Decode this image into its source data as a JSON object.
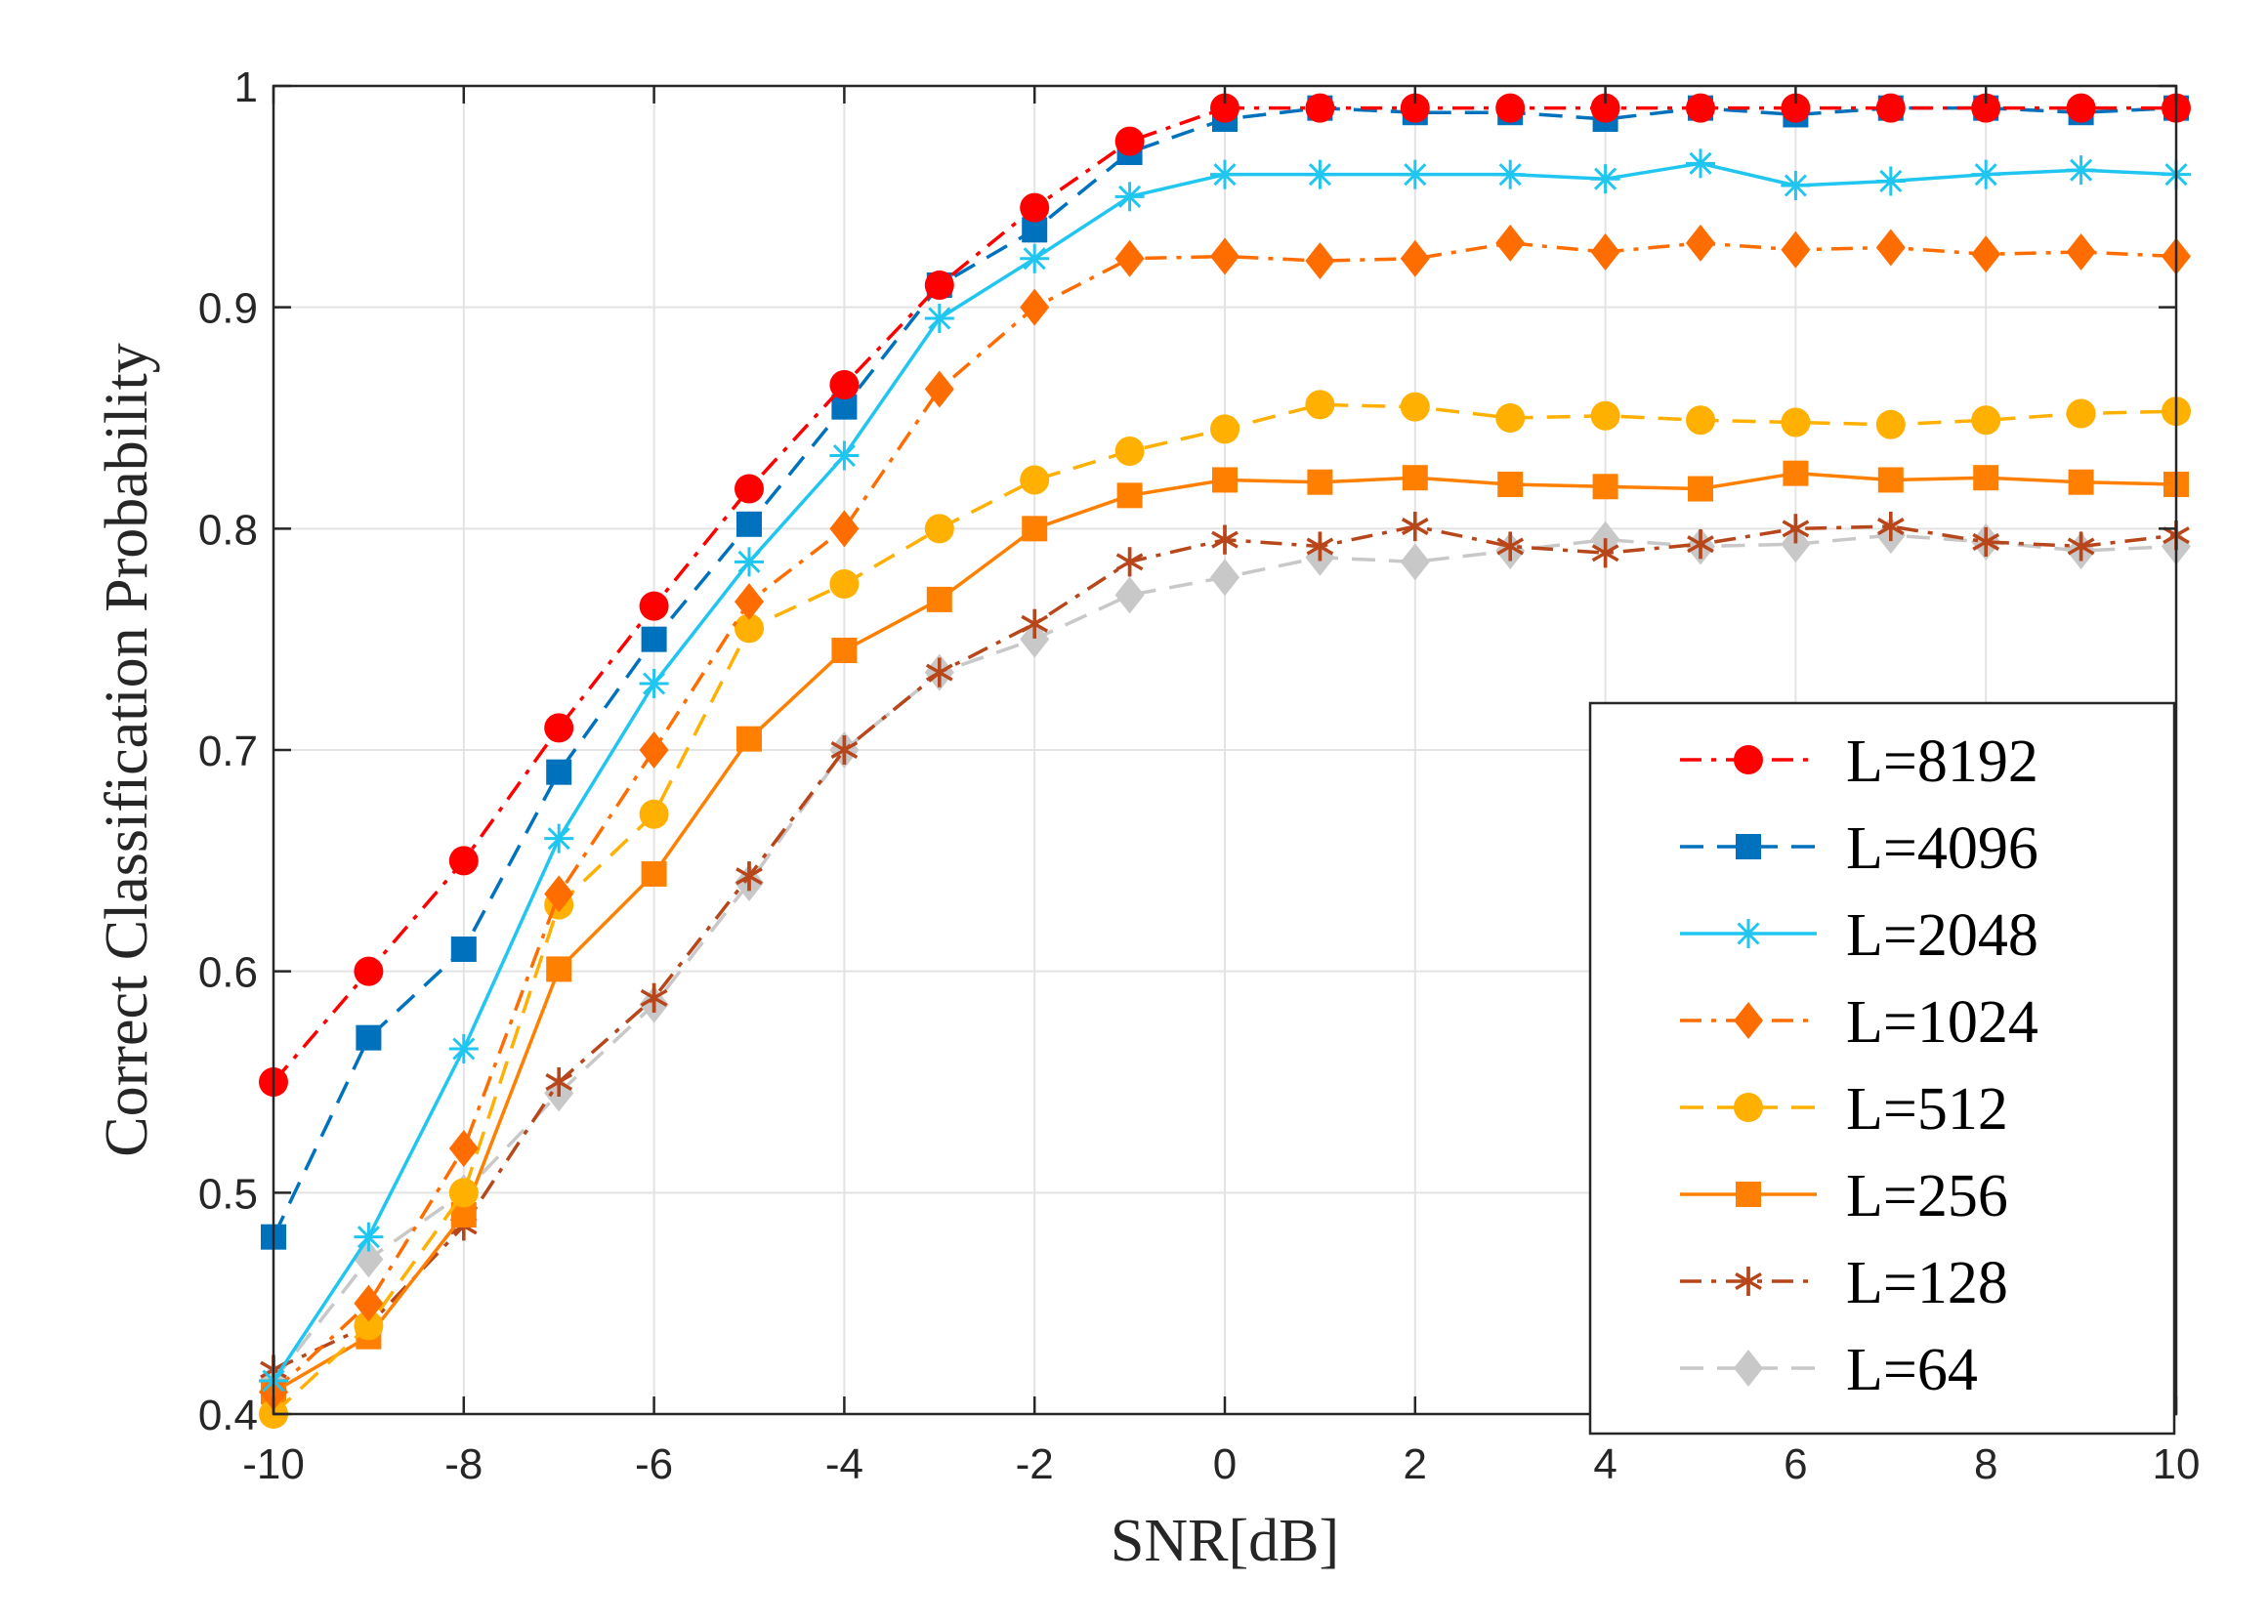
{
  "chart_data": {
    "type": "line",
    "title": "",
    "xlabel": "SNR[dB]",
    "ylabel": "Correct Classification Probability",
    "xlim": [
      -10,
      10
    ],
    "ylim": [
      0.4,
      1.0
    ],
    "grid": true,
    "legend_position": "bottom-right",
    "xticks": [
      -10,
      -8,
      -6,
      -4,
      -2,
      0,
      2,
      4,
      6,
      8,
      10
    ],
    "xtick_labels": [
      "-10",
      "-8",
      "-6",
      "-4",
      "-2",
      "0",
      "2",
      "4",
      "6",
      "8",
      "10"
    ],
    "yticks": [
      0.4,
      0.5,
      0.6,
      0.7,
      0.8,
      0.9,
      1.0
    ],
    "ytick_labels": [
      "0.4",
      "0.5",
      "0.6",
      "0.7",
      "0.8",
      "0.9",
      "1"
    ],
    "x": [
      -10,
      -9,
      -8,
      -7,
      -6,
      -5,
      -4,
      -3,
      -2,
      -1,
      0,
      1,
      2,
      3,
      4,
      5,
      6,
      7,
      8,
      9,
      10
    ],
    "series": [
      {
        "name": "L=8192",
        "color": "#ff0000",
        "marker": "circle",
        "line_style": "dashdot",
        "values": [
          0.55,
          0.6,
          0.65,
          0.71,
          0.765,
          0.818,
          0.865,
          0.91,
          0.945,
          0.975,
          0.99,
          0.99,
          0.99,
          0.99,
          0.99,
          0.99,
          0.99,
          0.99,
          0.99,
          0.99,
          0.99
        ]
      },
      {
        "name": "L=4096",
        "color": "#0072bd",
        "marker": "square",
        "line_style": "dashed",
        "values": [
          0.48,
          0.57,
          0.61,
          0.69,
          0.75,
          0.802,
          0.855,
          0.91,
          0.935,
          0.97,
          0.985,
          0.99,
          0.988,
          0.988,
          0.985,
          0.99,
          0.987,
          0.99,
          0.99,
          0.988,
          0.99
        ]
      },
      {
        "name": "L=2048",
        "color": "#20c6f0",
        "marker": "asterisk",
        "line_style": "solid",
        "values": [
          0.415,
          0.48,
          0.565,
          0.66,
          0.73,
          0.785,
          0.833,
          0.895,
          0.922,
          0.95,
          0.96,
          0.96,
          0.96,
          0.96,
          0.958,
          0.965,
          0.955,
          0.957,
          0.96,
          0.962,
          0.96
        ]
      },
      {
        "name": "L=1024",
        "color": "#ff6d00",
        "marker": "diamond",
        "line_style": "dashdot",
        "values": [
          0.41,
          0.45,
          0.52,
          0.635,
          0.7,
          0.767,
          0.8,
          0.863,
          0.9,
          0.922,
          0.923,
          0.921,
          0.922,
          0.929,
          0.925,
          0.929,
          0.926,
          0.927,
          0.924,
          0.925,
          0.923
        ]
      },
      {
        "name": "L=512",
        "color": "#ffb000",
        "marker": "circle",
        "line_style": "dashed",
        "values": [
          0.4,
          0.44,
          0.5,
          0.63,
          0.671,
          0.755,
          0.775,
          0.8,
          0.822,
          0.835,
          0.845,
          0.856,
          0.855,
          0.85,
          0.851,
          0.849,
          0.848,
          0.847,
          0.849,
          0.852,
          0.853
        ]
      },
      {
        "name": "L=256",
        "color": "#ff8000",
        "marker": "square",
        "line_style": "solid",
        "values": [
          0.41,
          0.435,
          0.49,
          0.601,
          0.644,
          0.705,
          0.745,
          0.768,
          0.8,
          0.815,
          0.822,
          0.821,
          0.823,
          0.82,
          0.819,
          0.818,
          0.825,
          0.822,
          0.823,
          0.821,
          0.82
        ]
      },
      {
        "name": "L=128",
        "color": "#b8461b",
        "marker": "star",
        "line_style": "dashdot",
        "values": [
          0.42,
          0.44,
          0.485,
          0.55,
          0.588,
          0.643,
          0.7,
          0.735,
          0.757,
          0.785,
          0.795,
          0.792,
          0.801,
          0.792,
          0.789,
          0.793,
          0.8,
          0.801,
          0.794,
          0.792,
          0.797
        ]
      },
      {
        "name": "L=64",
        "color": "#c8c8c8",
        "marker": "diamond",
        "line_style": "dashed",
        "values": [
          0.415,
          0.47,
          0.5,
          0.545,
          0.585,
          0.64,
          0.7,
          0.735,
          0.75,
          0.77,
          0.778,
          0.787,
          0.785,
          0.79,
          0.795,
          0.792,
          0.793,
          0.797,
          0.794,
          0.79,
          0.792
        ]
      }
    ]
  }
}
